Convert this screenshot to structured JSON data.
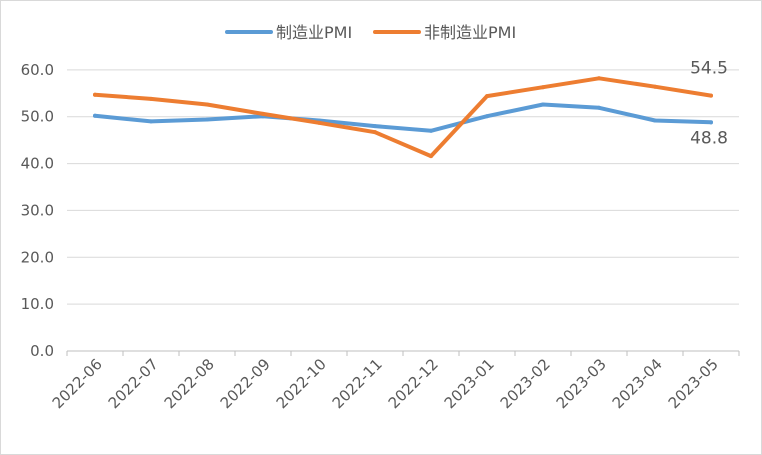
{
  "chart_data": {
    "type": "line",
    "title": "",
    "xlabel": "",
    "ylabel": "",
    "categories": [
      "2022-06",
      "2022-07",
      "2022-08",
      "2022-09",
      "2022-10",
      "2022-11",
      "2022-12",
      "2023-01",
      "2023-02",
      "2023-03",
      "2023-04",
      "2023-05"
    ],
    "series": [
      {
        "name": "制造业PMI",
        "color": "#5b9bd5",
        "values": [
          50.2,
          49.0,
          49.4,
          50.1,
          49.2,
          48.0,
          47.0,
          50.1,
          52.6,
          51.9,
          49.2,
          48.8
        ]
      },
      {
        "name": "非制造业PMI",
        "color": "#ed7d31",
        "values": [
          54.7,
          53.8,
          52.6,
          50.6,
          48.7,
          46.7,
          41.6,
          54.4,
          56.3,
          58.2,
          56.4,
          54.5
        ]
      }
    ],
    "ylim": [
      0,
      70
    ],
    "yticks": [
      0,
      10,
      20,
      30,
      40,
      50,
      60
    ],
    "ytick_labels": [
      "0.0",
      "10.0",
      "20.0",
      "30.0",
      "40.0",
      "50.0",
      "60.0"
    ],
    "grid": true,
    "legend_position": "top",
    "data_labels": [
      {
        "series": 1,
        "index": 11,
        "text": "54.5"
      },
      {
        "series": 0,
        "index": 11,
        "text": "48.8"
      }
    ]
  }
}
